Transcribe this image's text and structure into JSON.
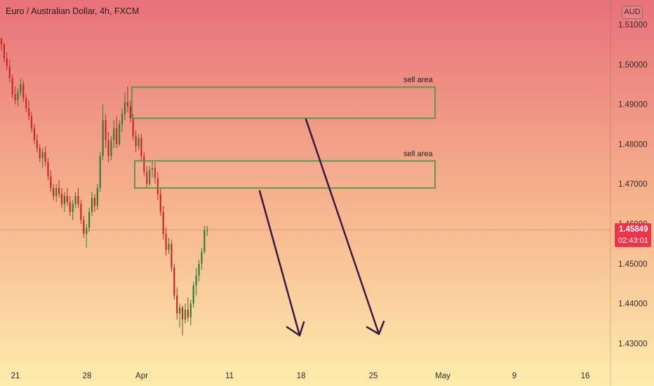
{
  "header": {
    "symbol_title": "Euro / Australian Dollar, 4h, FXCM",
    "currency": "AUD"
  },
  "current_price": {
    "price": "1.45849",
    "countdown": "02:43:01",
    "value": 1.45849
  },
  "colors": {
    "background_top": "#e8727a",
    "background_bottom": "#fdecac",
    "candle_up": "#2e7d32",
    "candle_down": "#c62828",
    "zone_border": "#5d9a4e",
    "arrow": "#3b1845",
    "price_tag": "#f0344c"
  },
  "chart_data": {
    "type": "candlestick",
    "y_ticks": [
      "1.51000",
      "1.50000",
      "1.49000",
      "1.48000",
      "1.47000",
      "1.46000",
      "1.45000",
      "1.44000",
      "1.43000"
    ],
    "x_ticks": [
      "21",
      "28",
      "Apr",
      "11",
      "18",
      "25",
      "May",
      "9",
      "16"
    ],
    "ylim": [
      1.4262,
      1.5142
    ],
    "zones": [
      {
        "label": "sell area",
        "top": 1.4943,
        "bottom": 1.4865
      },
      {
        "label": "sell area",
        "top": 1.4758,
        "bottom": 1.469
      }
    ],
    "candles": [
      [
        1.5065,
        1.5068,
        1.5035,
        1.505
      ],
      [
        1.505,
        1.5055,
        1.5005,
        1.5015
      ],
      [
        1.5015,
        1.503,
        1.4985,
        1.4995
      ],
      [
        1.4995,
        1.5012,
        1.4955,
        1.4965
      ],
      [
        1.4965,
        1.4975,
        1.4915,
        1.4925
      ],
      [
        1.4925,
        1.4945,
        1.49,
        1.491
      ],
      [
        1.491,
        1.494,
        1.4895,
        1.493
      ],
      [
        1.493,
        1.4965,
        1.492,
        1.495
      ],
      [
        1.495,
        1.496,
        1.4905,
        1.4915
      ],
      [
        1.4915,
        1.4925,
        1.488,
        1.489
      ],
      [
        1.489,
        1.491,
        1.486,
        1.487
      ],
      [
        1.487,
        1.488,
        1.483,
        1.484
      ],
      [
        1.484,
        1.485,
        1.48,
        1.481
      ],
      [
        1.481,
        1.4825,
        1.478,
        1.479
      ],
      [
        1.479,
        1.48,
        1.4755,
        1.4765
      ],
      [
        1.4765,
        1.479,
        1.474,
        1.478
      ],
      [
        1.478,
        1.4795,
        1.4745,
        1.4755
      ],
      [
        1.4755,
        1.4765,
        1.471,
        1.472
      ],
      [
        1.472,
        1.4735,
        1.468,
        1.469
      ],
      [
        1.469,
        1.47,
        1.466,
        1.467
      ],
      [
        1.467,
        1.47,
        1.4655,
        1.469
      ],
      [
        1.469,
        1.471,
        1.4665,
        1.4675
      ],
      [
        1.4675,
        1.469,
        1.464,
        1.465
      ],
      [
        1.465,
        1.468,
        1.463,
        1.467
      ],
      [
        1.467,
        1.469,
        1.4645,
        1.4655
      ],
      [
        1.4655,
        1.467,
        1.462,
        1.463
      ],
      [
        1.463,
        1.466,
        1.461,
        1.465
      ],
      [
        1.465,
        1.468,
        1.464,
        1.467
      ],
      [
        1.467,
        1.469,
        1.464,
        1.465
      ],
      [
        1.465,
        1.466,
        1.46,
        1.461
      ],
      [
        1.461,
        1.462,
        1.4565,
        1.4575
      ],
      [
        1.4575,
        1.46,
        1.454,
        1.459
      ],
      [
        1.459,
        1.464,
        1.458,
        1.463
      ],
      [
        1.463,
        1.468,
        1.462,
        1.4665
      ],
      [
        1.4665,
        1.4675,
        1.463,
        1.4645
      ],
      [
        1.4645,
        1.47,
        1.4635,
        1.469
      ],
      [
        1.469,
        1.478,
        1.468,
        1.477
      ],
      [
        1.477,
        1.49,
        1.476,
        1.486
      ],
      [
        1.486,
        1.4875,
        1.479,
        1.481
      ],
      [
        1.481,
        1.483,
        1.4755,
        1.477
      ],
      [
        1.477,
        1.482,
        1.476,
        1.481
      ],
      [
        1.481,
        1.486,
        1.479,
        1.484
      ],
      [
        1.484,
        1.487,
        1.479,
        1.48
      ],
      [
        1.48,
        1.486,
        1.4795,
        1.485
      ],
      [
        1.485,
        1.489,
        1.483,
        1.4875
      ],
      [
        1.4875,
        1.493,
        1.486,
        1.4905
      ],
      [
        1.4905,
        1.4945,
        1.488,
        1.4895
      ],
      [
        1.4895,
        1.491,
        1.4855,
        1.4865
      ],
      [
        1.4865,
        1.4875,
        1.481,
        1.482
      ],
      [
        1.482,
        1.4835,
        1.478,
        1.4795
      ],
      [
        1.4795,
        1.4825,
        1.4785,
        1.4815
      ],
      [
        1.4815,
        1.4825,
        1.476,
        1.477
      ],
      [
        1.477,
        1.478,
        1.472,
        1.473
      ],
      [
        1.473,
        1.4745,
        1.469,
        1.47
      ],
      [
        1.47,
        1.4745,
        1.4695,
        1.4735
      ],
      [
        1.4735,
        1.4758,
        1.4715,
        1.474
      ],
      [
        1.474,
        1.4755,
        1.47,
        1.4715
      ],
      [
        1.4715,
        1.473,
        1.466,
        1.4675
      ],
      [
        1.4675,
        1.469,
        1.462,
        1.463
      ],
      [
        1.463,
        1.4645,
        1.456,
        1.4575
      ],
      [
        1.4575,
        1.459,
        1.452,
        1.4535
      ],
      [
        1.4535,
        1.4565,
        1.4525,
        1.455
      ],
      [
        1.455,
        1.456,
        1.448,
        1.449
      ],
      [
        1.449,
        1.45,
        1.441,
        1.442
      ],
      [
        1.442,
        1.444,
        1.436,
        1.4375
      ],
      [
        1.4375,
        1.44,
        1.434,
        1.439
      ],
      [
        1.439,
        1.4395,
        1.432,
        1.436
      ],
      [
        1.436,
        1.44,
        1.435,
        1.4385
      ],
      [
        1.4385,
        1.4415,
        1.4355,
        1.4365
      ],
      [
        1.4365,
        1.441,
        1.4345,
        1.44
      ],
      [
        1.44,
        1.4455,
        1.439,
        1.4445
      ],
      [
        1.4445,
        1.449,
        1.442,
        1.447
      ],
      [
        1.447,
        1.451,
        1.4455,
        1.45
      ],
      [
        1.45,
        1.454,
        1.4485,
        1.453
      ],
      [
        1.453,
        1.4595,
        1.4525,
        1.4585
      ],
      [
        1.4585,
        1.4595,
        1.457,
        1.4585
      ]
    ]
  }
}
